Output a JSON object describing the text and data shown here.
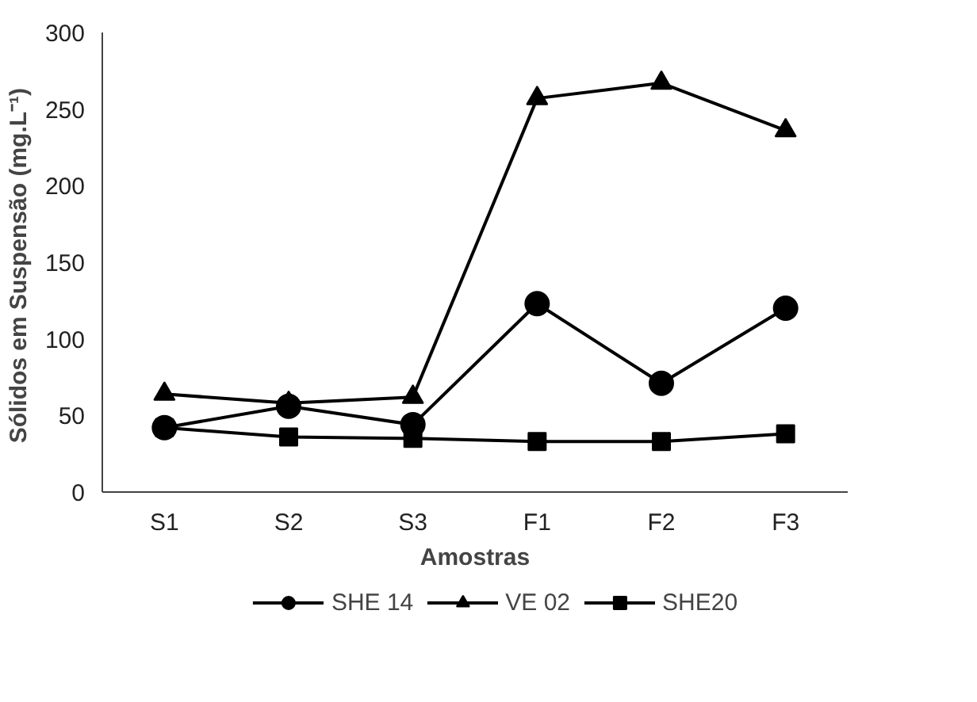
{
  "chart_data": {
    "type": "line",
    "xlabel": "Amostras",
    "ylabel": "Sólidos em Suspensão  (mg.L⁻¹)",
    "categories": [
      "S1",
      "S2",
      "S3",
      "F1",
      "F2",
      "F3"
    ],
    "series": [
      {
        "name": "SHE 14",
        "color": "#000000",
        "marker": "circle",
        "values": [
          42,
          56,
          44,
          123,
          71,
          120
        ]
      },
      {
        "name": "VE 02",
        "color": "#000000",
        "marker": "triangle",
        "values": [
          64,
          58,
          62,
          257,
          267,
          236
        ]
      },
      {
        "name": "SHE20",
        "color": "#000000",
        "marker": "square",
        "values": [
          42,
          36,
          35,
          33,
          33,
          38
        ]
      }
    ],
    "ylim": [
      0,
      300
    ],
    "yticks": [
      0,
      50,
      100,
      150,
      200,
      250,
      300
    ],
    "grid": false,
    "legend": "bottom",
    "line_style": "solid"
  }
}
